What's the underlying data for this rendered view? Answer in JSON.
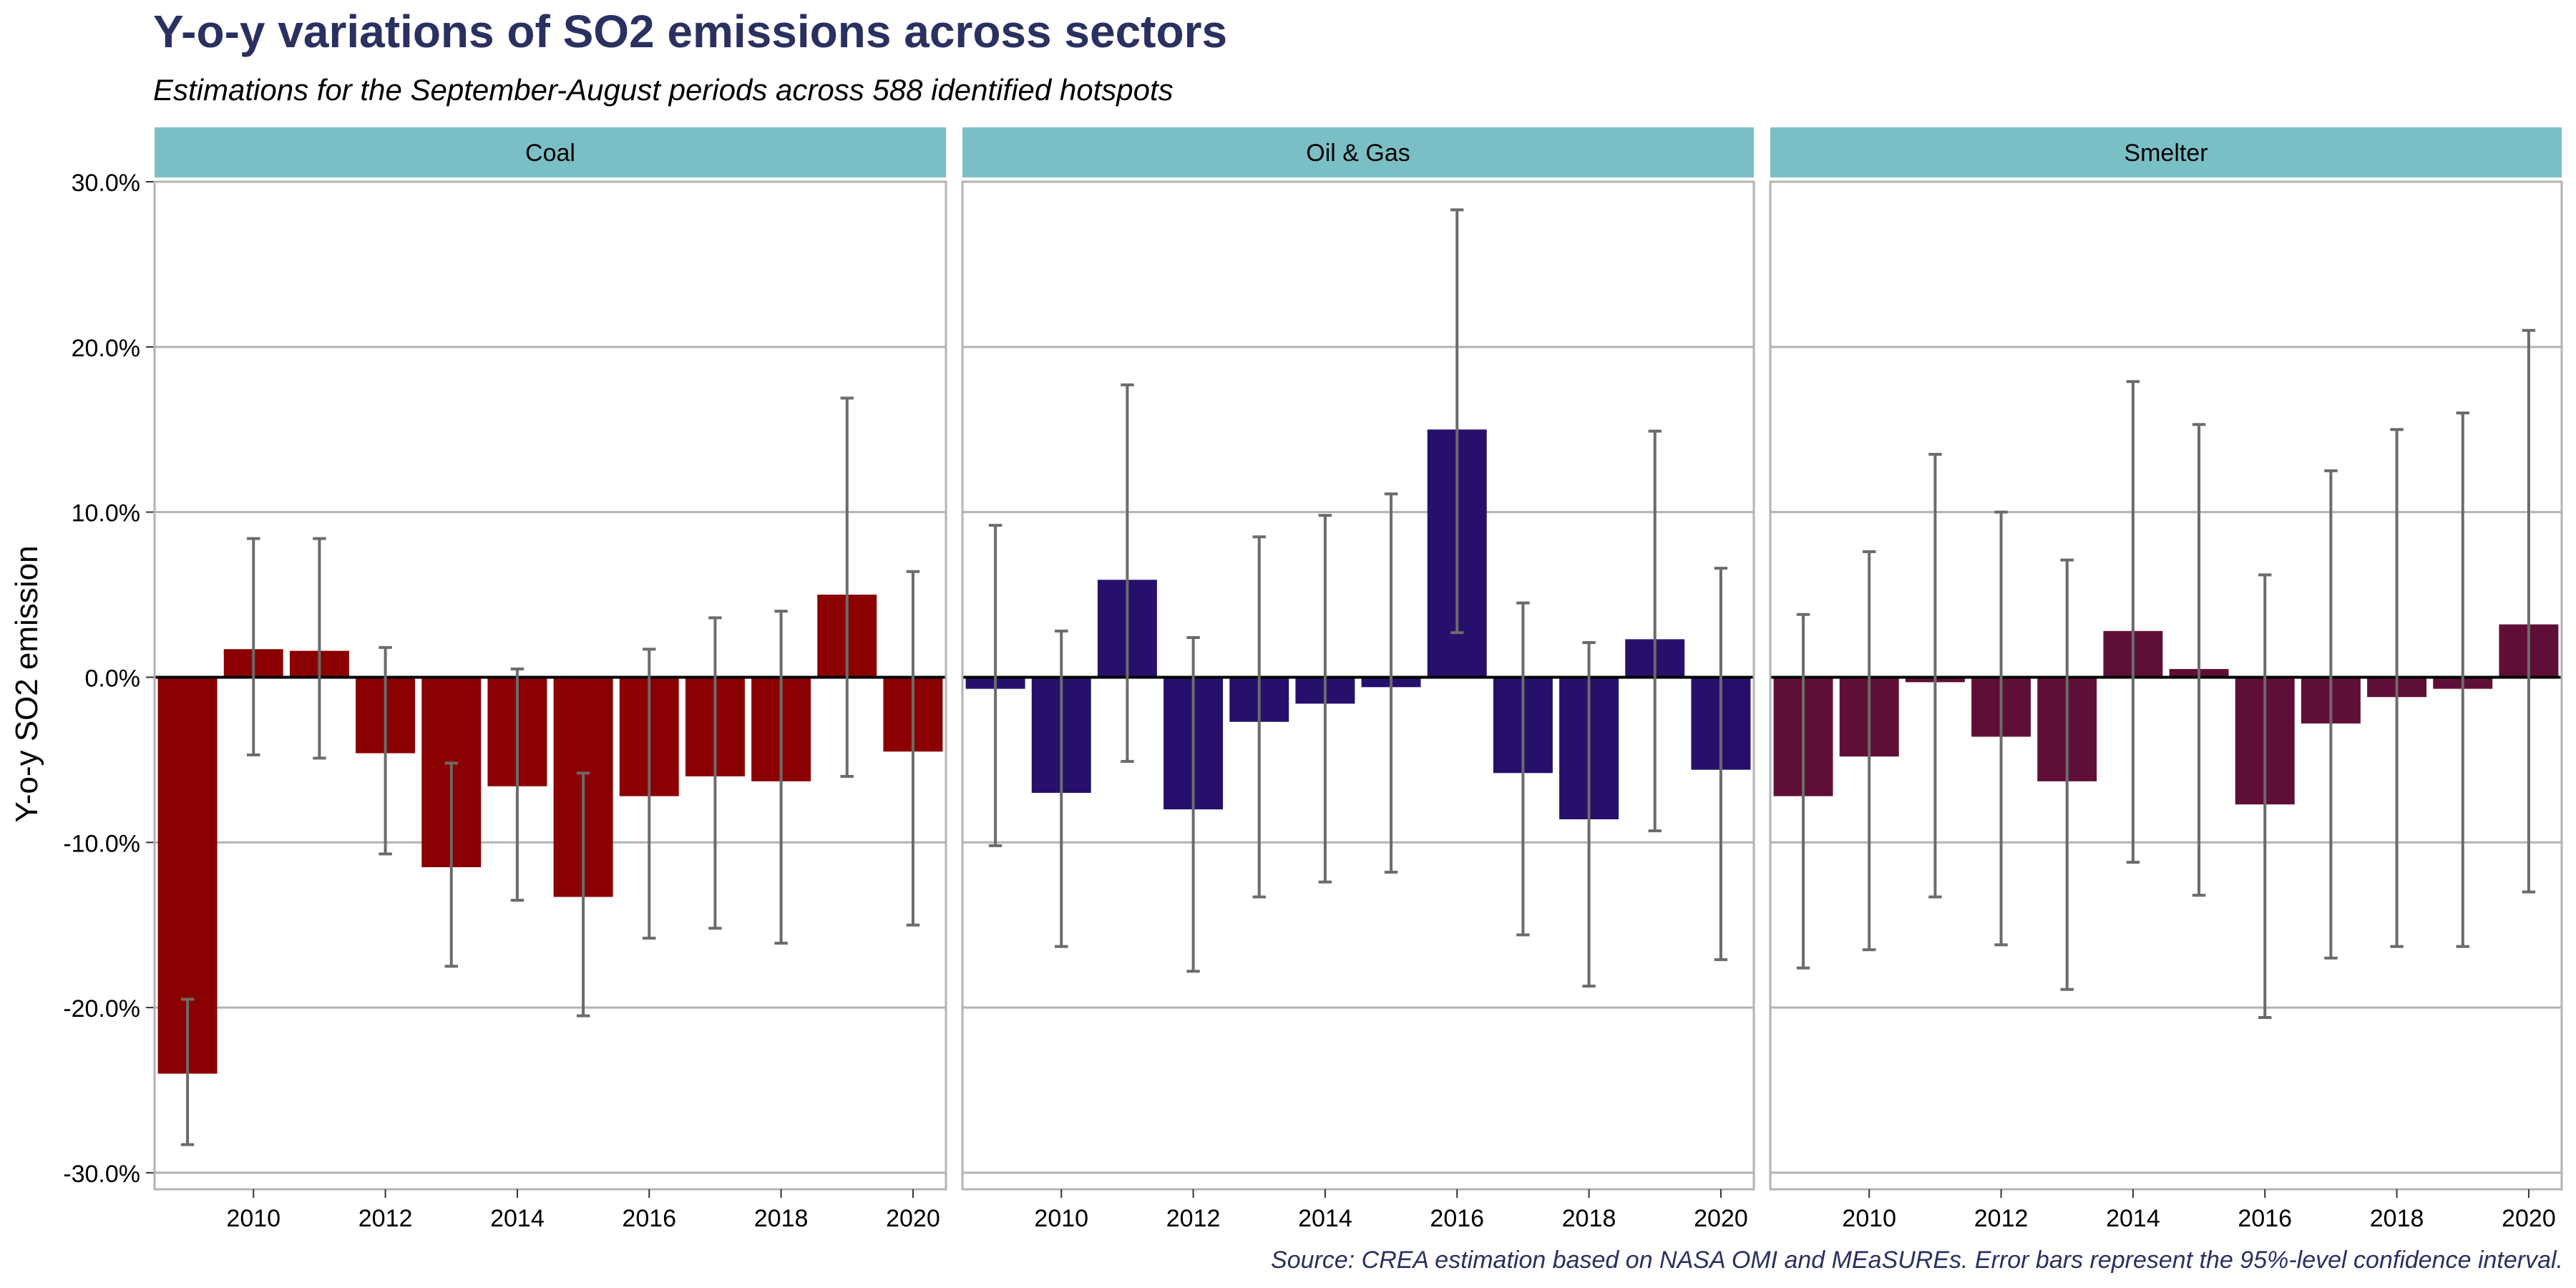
{
  "chart_data": {
    "type": "bar",
    "title": "Y-o-y variations of SO2 emissions across sectors",
    "subtitle": "Estimations for the September-August periods across 588 identified hotspots",
    "ylabel": "Y-o-y SO2 emission",
    "caption": "Source: CREA estimation based on NASA OMI and MEaSUREs. Error bars represent the 95%-level confidence interval.",
    "ylim": [
      -0.31,
      0.3
    ],
    "yticks": [
      -0.3,
      -0.2,
      -0.1,
      0.0,
      0.1,
      0.2,
      0.3
    ],
    "ytick_labels": [
      "-30.0%",
      "-20.0%",
      "-10.0%",
      "0.0%",
      "10.0%",
      "20.0%",
      "30.0%"
    ],
    "x": [
      2009,
      2010,
      2011,
      2012,
      2013,
      2014,
      2015,
      2016,
      2017,
      2018,
      2019,
      2020
    ],
    "xticks": [
      2010,
      2012,
      2014,
      2016,
      2018,
      2020
    ],
    "xtick_labels": [
      "2010",
      "2012",
      "2014",
      "2016",
      "2018",
      "2020"
    ],
    "grid": true,
    "panels": [
      {
        "name": "Coal",
        "color": "#8b0000",
        "values": [
          -0.24,
          0.017,
          0.016,
          -0.046,
          -0.115,
          -0.066,
          -0.133,
          -0.072,
          -0.06,
          -0.063,
          0.05,
          -0.045
        ],
        "lower": [
          -0.283,
          -0.047,
          -0.049,
          -0.107,
          -0.175,
          -0.135,
          -0.205,
          -0.158,
          -0.152,
          -0.161,
          -0.06,
          -0.15
        ],
        "upper": [
          -0.195,
          0.084,
          0.084,
          0.018,
          -0.052,
          0.005,
          -0.058,
          0.017,
          0.036,
          0.04,
          0.169,
          0.064
        ]
      },
      {
        "name": "Oil & Gas",
        "color": "#27106b",
        "values": [
          -0.007,
          -0.07,
          0.059,
          -0.08,
          -0.027,
          -0.016,
          -0.006,
          0.15,
          -0.058,
          -0.086,
          0.023,
          -0.056
        ],
        "lower": [
          -0.102,
          -0.163,
          -0.051,
          -0.178,
          -0.133,
          -0.124,
          -0.118,
          0.027,
          -0.156,
          -0.187,
          -0.093,
          -0.171
        ],
        "upper": [
          0.092,
          0.028,
          0.177,
          0.024,
          0.085,
          0.098,
          0.111,
          0.283,
          0.045,
          0.021,
          0.149,
          0.066
        ]
      },
      {
        "name": "Smelter",
        "color": "#5f0f37",
        "values": [
          -0.072,
          -0.048,
          -0.003,
          -0.036,
          -0.063,
          0.028,
          0.005,
          -0.077,
          -0.028,
          -0.012,
          -0.007,
          0.032
        ],
        "lower": [
          -0.176,
          -0.165,
          -0.133,
          -0.162,
          -0.189,
          -0.112,
          -0.132,
          -0.206,
          -0.17,
          -0.163,
          -0.163,
          -0.13
        ],
        "upper": [
          0.038,
          0.076,
          0.135,
          0.1,
          0.071,
          0.179,
          0.153,
          0.062,
          0.125,
          0.15,
          0.16,
          0.21
        ]
      }
    ],
    "colors": {
      "strip": "#7bbfc6",
      "grid": "#b3b3b3",
      "zero_line": "#000000",
      "error_bar": "#6b6b6b",
      "title": "#2a3060"
    }
  }
}
